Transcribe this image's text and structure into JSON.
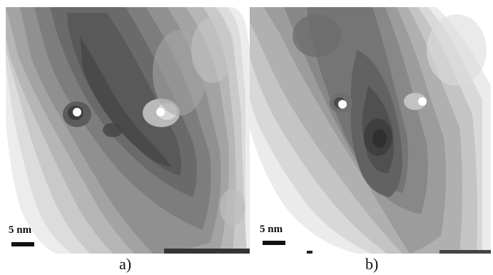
{
  "figure": {
    "panels": [
      {
        "caption": "a)",
        "scale_bar_label": "5 nm"
      },
      {
        "caption": "b)",
        "scale_bar_label": "5 nm"
      }
    ],
    "colors": {
      "background": "#ffffff",
      "marker": "#ffffff",
      "contour_levels": [
        "#f2f2f2",
        "#dadada",
        "#c4c4c4",
        "#adadad",
        "#979797",
        "#818181",
        "#6b6b6b",
        "#575757",
        "#454545",
        "#353535"
      ]
    }
  }
}
